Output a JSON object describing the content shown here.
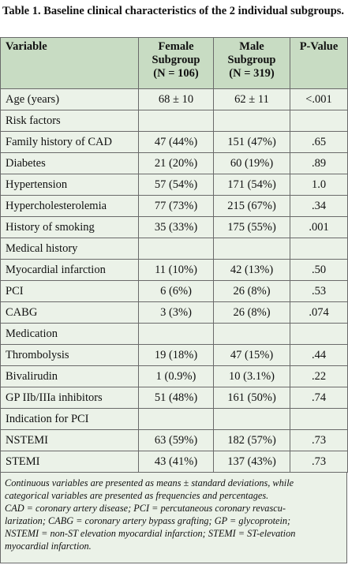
{
  "title": "Table 1. Baseline clinical characteristics of the 2 individual subgroups.",
  "table": {
    "header": [
      [
        "Variable"
      ],
      [
        "Female",
        "Subgroup",
        "(N = 106)"
      ],
      [
        "Male",
        "Subgroup",
        "(N = 319)"
      ],
      [
        "P-Value"
      ]
    ],
    "rows": [
      [
        "Age (years)",
        "68 ± 10",
        "62 ± 11",
        "<.001"
      ],
      [
        "Risk factors"
      ],
      [
        "Family history of CAD",
        "47 (44%)",
        "151 (47%)",
        ".65"
      ],
      [
        "Diabetes",
        "21 (20%)",
        "60 (19%)",
        ".89"
      ],
      [
        "Hypertension",
        "57 (54%)",
        "171 (54%)",
        "1.0"
      ],
      [
        "Hypercholesterolemia",
        "77 (73%)",
        "215 (67%)",
        ".34"
      ],
      [
        "History of smoking",
        "35 (33%)",
        "175 (55%)",
        ".001"
      ],
      [
        "Medical history"
      ],
      [
        "Myocardial infarction",
        "11 (10%)",
        "42 (13%)",
        ".50"
      ],
      [
        "PCI",
        "6 (6%)",
        "26 (8%)",
        ".53"
      ],
      [
        "CABG",
        "3 (3%)",
        "26 (8%)",
        ".074"
      ],
      [
        "Medication"
      ],
      [
        "Thrombolysis",
        "19 (18%)",
        "47 (15%)",
        ".44"
      ],
      [
        "Bivalirudin",
        "1 (0.9%)",
        "10 (3.1%)",
        ".22"
      ],
      [
        "GP IIb/IIIa inhibitors",
        "51 (48%)",
        "161 (50%)",
        ".74"
      ],
      [
        "Indication for PCI"
      ],
      [
        "NSTEMI",
        "63 (59%)",
        "182 (57%)",
        ".73"
      ],
      [
        "STEMI",
        "43 (41%)",
        "137 (43%)",
        ".73"
      ]
    ]
  },
  "footnote": [
    "Continuous variables are presented as means ± standard deviations, while",
    "categorical variables are presented as frequencies and percentages.",
    "CAD = coronary artery disease; PCI = percutaneous coronary revascu-",
    "larization; CABG = coronary artery bypass grafting; GP = glycoprotein;",
    "NSTEMI = non-ST elevation myocardial infarction; STEMI = ST-elevation",
    "myocardial infarction."
  ]
}
